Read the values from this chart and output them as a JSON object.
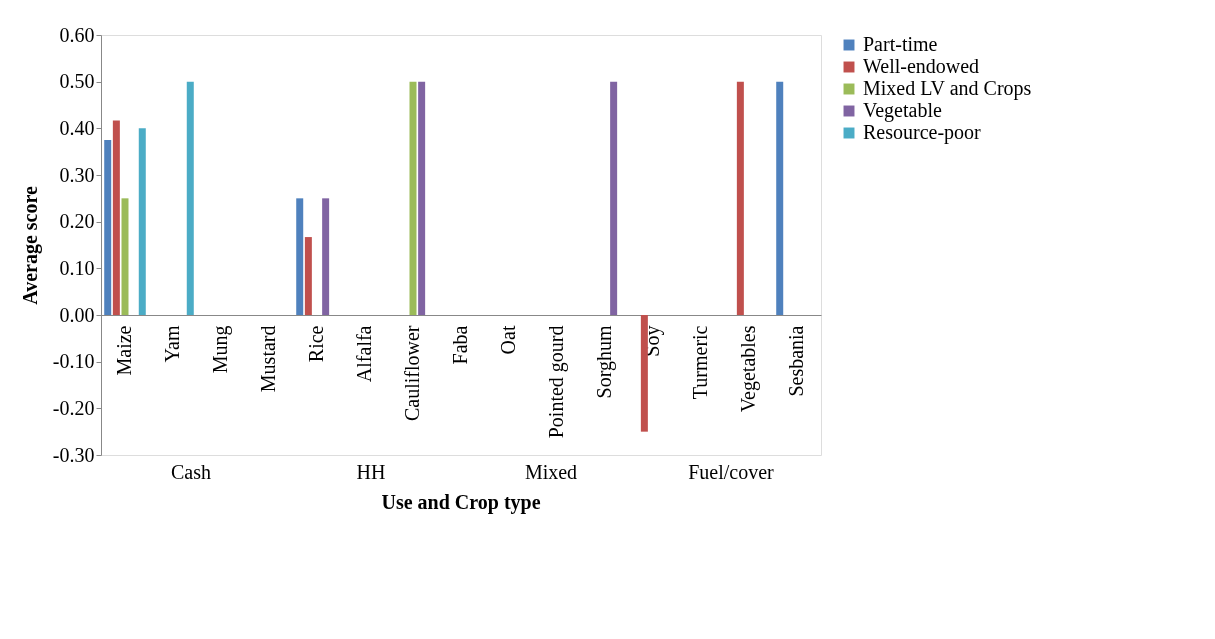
{
  "chart_data": {
    "type": "bar",
    "xlabel": "Use and Crop type",
    "ylabel": "Average score",
    "categories": [
      "Maize",
      "Yam",
      "Mung",
      "Mustard",
      "Rice",
      "Alfalfa",
      "Cauliflower",
      "Faba",
      "Oat",
      "Pointed gourd",
      "Sorghum",
      "Soy",
      "Turmeric",
      "Vegetables",
      "Sesbania"
    ],
    "series": [
      {
        "name": "Part-time",
        "color": "#4f81bd",
        "values": [
          0.375,
          null,
          null,
          null,
          0.25,
          null,
          null,
          null,
          null,
          null,
          null,
          null,
          null,
          null,
          0.5
        ]
      },
      {
        "name": "Well-endowed",
        "color": "#c0504d",
        "values": [
          0.417,
          null,
          null,
          null,
          0.167,
          null,
          null,
          null,
          null,
          null,
          null,
          -0.25,
          null,
          0.5,
          null
        ]
      },
      {
        "name": "Mixed LV and Crops",
        "color": "#9bbb59",
        "values": [
          0.25,
          null,
          null,
          null,
          null,
          null,
          0.5,
          null,
          null,
          null,
          null,
          null,
          null,
          null,
          null
        ]
      },
      {
        "name": "Vegetable",
        "color": "#8064a2",
        "values": [
          null,
          null,
          null,
          null,
          0.25,
          null,
          0.5,
          null,
          null,
          null,
          0.5,
          null,
          null,
          null,
          null
        ]
      },
      {
        "name": "Resource-poor",
        "color": "#4bacc6",
        "values": [
          0.4,
          0.5,
          null,
          null,
          null,
          null,
          null,
          null,
          null,
          null,
          null,
          null,
          null,
          null,
          null
        ]
      }
    ],
    "ylim": [
      -0.3,
      0.6
    ],
    "yticks": [
      {
        "value": -0.3,
        "label": "-0.30"
      },
      {
        "value": -0.2,
        "label": "-0.20"
      },
      {
        "value": -0.1,
        "label": "-0.10"
      },
      {
        "value": 0,
        "label": "0.00"
      },
      {
        "value": 0.1,
        "label": "0.10"
      },
      {
        "value": 0.2,
        "label": "0.20"
      },
      {
        "value": 0.3,
        "label": "0.30"
      },
      {
        "value": 0.4,
        "label": "0.40"
      },
      {
        "value": 0.5,
        "label": "0.50"
      },
      {
        "value": 0.6,
        "label": "0.60"
      }
    ],
    "annotations": [
      "Cash",
      "HH",
      "Mixed",
      "Fuel/cover"
    ],
    "legend": "right",
    "grid": false
  }
}
